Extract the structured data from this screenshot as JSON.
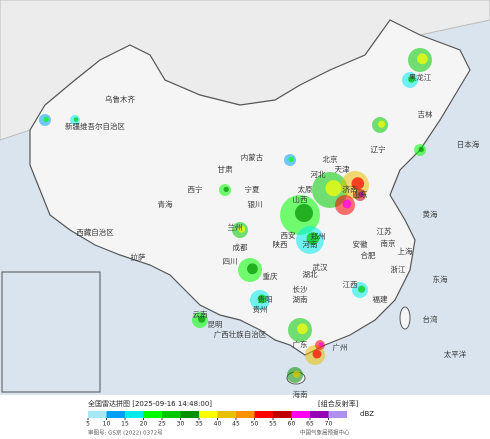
{
  "map": {
    "labels": [
      "乌鲁木齐",
      "新疆维吾尔自治区",
      "西藏自治区",
      "拉萨",
      "青海",
      "西宁",
      "甘肃",
      "兰州",
      "内蒙古",
      "宁夏",
      "银川",
      "四川",
      "成都",
      "重庆",
      "陕西",
      "西安",
      "山西",
      "太原",
      "北京",
      "天津",
      "河北",
      "山东",
      "济南",
      "河南",
      "郑州",
      "湖北",
      "武汉",
      "安徽",
      "合肥",
      "江苏",
      "南京",
      "上海",
      "浙江",
      "江西",
      "湖南",
      "长沙",
      "福建",
      "贵州",
      "贵阳",
      "云南",
      "昆明",
      "广西壮族自治区",
      "广东",
      "广州",
      "台湾",
      "海南",
      "辽宁",
      "吉林",
      "黑龙江",
      "东海",
      "黄海",
      "太平洋",
      "日本海"
    ]
  },
  "legend": {
    "title": "全国雷达拼图 [2025-09-16 14:48:00]",
    "product": "[组合反射率]",
    "unit": "dBZ",
    "ticks": [
      5,
      10,
      15,
      20,
      25,
      30,
      35,
      40,
      45,
      50,
      55,
      60,
      65,
      70
    ],
    "colors": [
      "#a6e8f6",
      "#01a0f6",
      "#00ecec",
      "#01ff00",
      "#00c800",
      "#019000",
      "#ffff00",
      "#e7c000",
      "#ff9000",
      "#ff0000",
      "#c00000",
      "#ff00f0",
      "#9600b4",
      "#ad90f0"
    ]
  },
  "footer": {
    "approval": "审图号: GS京 (2022) 0372号",
    "source": "中国气象局预报中心"
  }
}
